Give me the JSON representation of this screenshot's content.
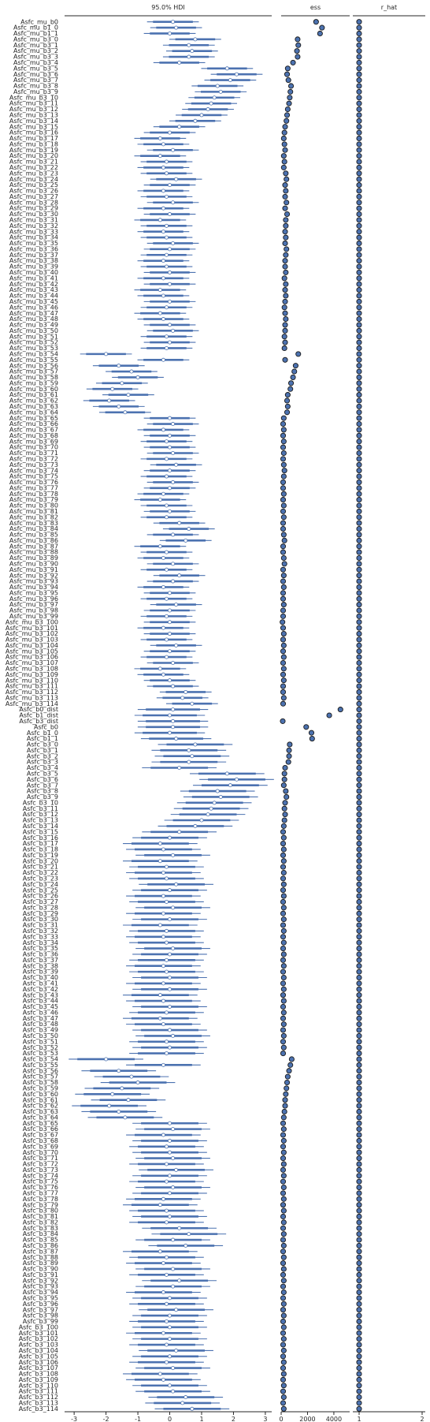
{
  "chart_data": {
    "type": "forest",
    "panels": {
      "hdi": {
        "title": "95.0% HDI",
        "xlim": [
          -3.3,
          3.2
        ],
        "ticks": [
          -3,
          -2,
          -1,
          0,
          1,
          2,
          3
        ]
      },
      "ess": {
        "title": "ess",
        "xlim": [
          0,
          5200
        ],
        "ticks": [
          0,
          2000,
          4000
        ]
      },
      "rhat": {
        "title": "r_hat",
        "xlim": [
          0.9,
          2.05
        ],
        "ticks": [
          1,
          2
        ]
      }
    },
    "colors": {
      "bar": "#4c72b0",
      "marker_edge": "#1a1a1a",
      "axis": "#262626"
    },
    "label_prefixes": {
      "mu_b3": "Asfc_mu_b3_",
      "b3": "Asfc_b3_"
    },
    "head_labels": [
      "Asfc_mu_b0",
      "Asfc_mu_b1_0",
      "Asfc_mu_b1_1"
    ],
    "dist_labels": [
      "Asfc_b0_dist",
      "Asfc_b1_dist",
      "Asfc_b3_dist"
    ],
    "b_head_labels": [
      "Asfc_b0",
      "Asfc_b1_0",
      "Asfc_b1_1"
    ],
    "b3_count": 115,
    "head_mu": {
      "means": [
        0.1,
        0.2,
        0.0
      ],
      "hdi_width": 1.25,
      "ess": [
        2650,
        3100,
        2950
      ]
    },
    "dist": {
      "means": [
        0.1,
        0.0,
        0.1
      ],
      "hdi_width": 1.7,
      "ess": [
        4500,
        3650,
        120
      ]
    },
    "head_b": {
      "means": [
        0.1,
        0.0,
        0.2
      ],
      "hdi_width": 1.7,
      "ess": [
        1900,
        2300,
        2350
      ]
    },
    "b3_means": [
      0.8,
      0.6,
      0.7,
      0.6,
      0.3,
      1.8,
      2.1,
      1.9,
      1.5,
      1.6,
      1.4,
      1.3,
      1.2,
      1.0,
      0.8,
      0.3,
      0.0,
      -0.3,
      -0.2,
      0.1,
      -0.3,
      -0.1,
      -0.2,
      -0.1,
      0.2,
      0.0,
      -0.2,
      -0.1,
      0.1,
      -0.2,
      0.0,
      -0.3,
      -0.1,
      -0.2,
      -0.1,
      0.1,
      0.0,
      -0.1,
      -0.2,
      -0.1,
      0.0,
      -0.2,
      0.0,
      -0.3,
      -0.2,
      0.0,
      -0.1,
      -0.3,
      -0.2,
      0.0,
      0.1,
      -0.1,
      0.0,
      -0.1,
      -2.0,
      -0.2,
      -1.6,
      -1.2,
      -1.0,
      -1.5,
      -1.8,
      -1.3,
      -1.9,
      -1.6,
      -1.4,
      0.0,
      0.1,
      -0.2,
      0.0,
      -0.1,
      0.0,
      0.1,
      -0.1,
      0.2,
      0.0,
      -0.1,
      0.1,
      0.0,
      -0.2,
      -0.3,
      -0.1,
      0.0,
      -0.1,
      0.3,
      0.6,
      0.1,
      0.5,
      -0.3,
      -0.1,
      -0.2,
      0.1,
      -0.1,
      0.3,
      0.1,
      -0.2,
      0.0,
      -0.1,
      0.2,
      0.0,
      -0.1,
      0.0,
      -0.2,
      0.0,
      -0.1,
      0.2,
      0.0,
      -0.1,
      0.1,
      -0.3,
      -0.2,
      0.0,
      0.1,
      0.5,
      0.4,
      0.7
    ],
    "mu_b3_hdi_width": 1.25,
    "b3_hdi_width": 1.8,
    "mu_b3_ess": [
      1250,
      1300,
      1200,
      1250,
      900,
      500,
      450,
      550,
      750,
      700,
      650,
      600,
      500,
      450,
      400,
      300,
      250,
      200,
      250,
      300,
      200,
      250,
      200,
      350,
      400,
      300,
      350,
      300,
      400,
      300,
      450,
      350,
      350,
      300,
      350,
      300,
      400,
      350,
      300,
      300,
      350,
      250,
      350,
      300,
      350,
      300,
      250,
      300,
      350,
      300,
      300,
      250,
      300,
      250,
      1300,
      300,
      1100,
      1000,
      900,
      750,
      700,
      500,
      450,
      500,
      450,
      200,
      150,
      200,
      150,
      200,
      150,
      200,
      150,
      200,
      250,
      200,
      150,
      150,
      200,
      150,
      200,
      150,
      200,
      150,
      150,
      200,
      250,
      150,
      150,
      200,
      250,
      150,
      200,
      150,
      200,
      150,
      150,
      200,
      150,
      150,
      100,
      150,
      200,
      150,
      200,
      150,
      200,
      150,
      200,
      150,
      200,
      150,
      150,
      200,
      150
    ],
    "b3_ess": [
      650,
      600,
      600,
      550,
      300,
      250,
      250,
      200,
      350,
      400,
      300,
      250,
      300,
      250,
      200,
      150,
      200,
      150,
      200,
      150,
      200,
      150,
      200,
      150,
      200,
      150,
      200,
      150,
      200,
      150,
      200,
      150,
      200,
      150,
      200,
      150,
      200,
      150,
      200,
      150,
      200,
      150,
      200,
      150,
      200,
      150,
      200,
      150,
      200,
      150,
      200,
      150,
      200,
      150,
      800,
      700,
      600,
      500,
      450,
      400,
      350,
      300,
      300,
      250,
      200,
      150,
      200,
      150,
      200,
      150,
      200,
      150,
      200,
      150,
      200,
      150,
      200,
      150,
      200,
      150,
      200,
      150,
      200,
      150,
      200,
      150,
      200,
      150,
      200,
      150,
      200,
      150,
      200,
      150,
      200,
      150,
      200,
      150,
      200,
      150,
      200,
      150,
      200,
      150,
      200,
      150,
      200,
      150,
      200,
      150,
      200,
      150,
      200,
      150,
      200
    ],
    "r_hat_all": 1.0
  }
}
